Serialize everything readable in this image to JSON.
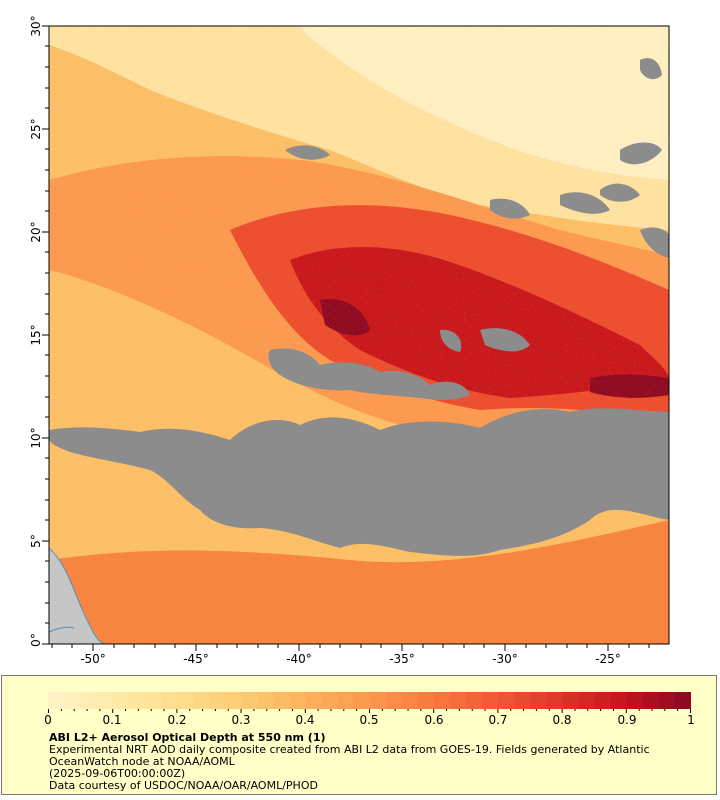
{
  "map": {
    "lat_labels": [
      "30°",
      "25°",
      "20°",
      "15°",
      "10°",
      "5°",
      "0°"
    ],
    "lon_labels": [
      "-50°",
      "-45°",
      "-40°",
      "-35°",
      "-30°",
      "-25°"
    ],
    "extent": {
      "lon_min": -52.3,
      "lon_max": -22.2,
      "lat_min": 0,
      "lat_max": 30.2
    },
    "colors": {
      "no_data": "#8c8c8c",
      "land": "#c6c6c6",
      "coast": "#4a90c4"
    }
  },
  "legend": {
    "scale_labels": [
      "0",
      "0.1",
      "0.2",
      "0.3",
      "0.4",
      "0.5",
      "0.6",
      "0.7",
      "0.8",
      "0.9",
      "1"
    ],
    "colormap": [
      "#fff3c6",
      "#fee9a7",
      "#fedd8c",
      "#fdca74",
      "#fcb15d",
      "#fb984e",
      "#f97a42",
      "#f05a35",
      "#de3728",
      "#c4161d",
      "#8f0a22"
    ],
    "product_title": "ABI L2+ Aerosol Optical Depth at 550 nm (1)",
    "description_line1": "Experimental NRT AOD daily composite created from ABI L2 data from GOES-19. Fields generated by Atlantic",
    "description_line2": "OceanWatch node at NOAA/AOML",
    "timestamp": "(2025-09-06T00:00:00Z)",
    "credit": "Data courtesy of USDOC/NOAA/OAR/AOML/PHOD"
  }
}
